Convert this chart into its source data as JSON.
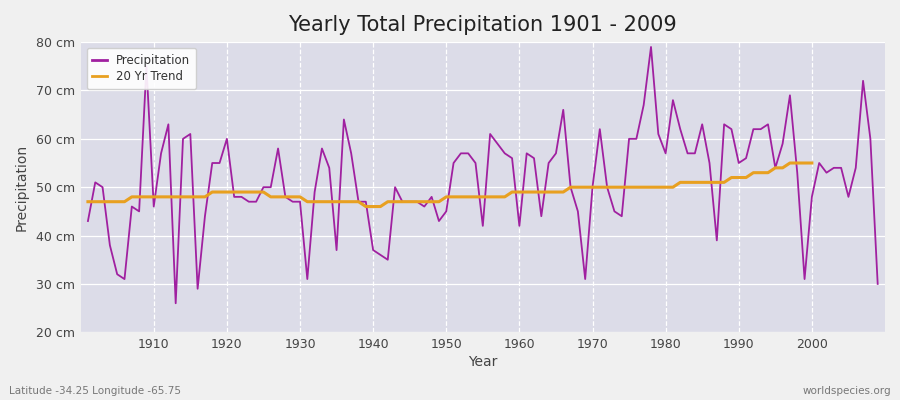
{
  "title": "Yearly Total Precipitation 1901 - 2009",
  "xlabel": "Year",
  "ylabel": "Precipitation",
  "subtitle": "Latitude -34.25 Longitude -65.75",
  "watermark": "worldspecies.org",
  "years": [
    1901,
    1902,
    1903,
    1904,
    1905,
    1906,
    1907,
    1908,
    1909,
    1910,
    1911,
    1912,
    1913,
    1914,
    1915,
    1916,
    1917,
    1918,
    1919,
    1920,
    1921,
    1922,
    1923,
    1924,
    1925,
    1926,
    1927,
    1928,
    1929,
    1930,
    1931,
    1932,
    1933,
    1934,
    1935,
    1936,
    1937,
    1938,
    1939,
    1940,
    1941,
    1942,
    1943,
    1944,
    1945,
    1946,
    1947,
    1948,
    1949,
    1950,
    1951,
    1952,
    1953,
    1954,
    1955,
    1956,
    1957,
    1958,
    1959,
    1960,
    1961,
    1962,
    1963,
    1964,
    1965,
    1966,
    1967,
    1968,
    1969,
    1970,
    1971,
    1972,
    1973,
    1974,
    1975,
    1976,
    1977,
    1978,
    1979,
    1980,
    1981,
    1982,
    1983,
    1984,
    1985,
    1986,
    1987,
    1988,
    1989,
    1990,
    1991,
    1992,
    1993,
    1994,
    1995,
    1996,
    1997,
    1998,
    1999,
    2000,
    2001,
    2002,
    2003,
    2004,
    2005,
    2006,
    2007,
    2008,
    2009
  ],
  "precip": [
    43,
    51,
    50,
    38,
    32,
    31,
    46,
    45,
    75,
    46,
    57,
    63,
    26,
    60,
    61,
    29,
    44,
    55,
    55,
    60,
    48,
    48,
    47,
    47,
    50,
    50,
    58,
    48,
    47,
    47,
    31,
    49,
    58,
    54,
    37,
    64,
    57,
    47,
    47,
    37,
    36,
    35,
    50,
    47,
    47,
    47,
    46,
    48,
    43,
    45,
    55,
    57,
    57,
    55,
    42,
    61,
    59,
    57,
    56,
    42,
    57,
    56,
    44,
    55,
    57,
    66,
    50,
    45,
    31,
    50,
    62,
    50,
    45,
    44,
    60,
    60,
    67,
    79,
    61,
    57,
    68,
    62,
    57,
    57,
    63,
    55,
    39,
    63,
    62,
    55,
    56,
    62,
    62,
    63,
    54,
    59,
    69,
    53,
    31,
    48,
    55,
    53,
    54,
    54,
    48,
    54,
    72,
    60,
    30
  ],
  "trend": [
    47,
    47,
    47,
    47,
    47,
    47,
    48,
    48,
    48,
    48,
    48,
    48,
    48,
    48,
    48,
    48,
    48,
    49,
    49,
    49,
    49,
    49,
    49,
    49,
    49,
    48,
    48,
    48,
    48,
    48,
    47,
    47,
    47,
    47,
    47,
    47,
    47,
    47,
    46,
    46,
    46,
    47,
    47,
    47,
    47,
    47,
    47,
    47,
    47,
    48,
    48,
    48,
    48,
    48,
    48,
    48,
    48,
    48,
    49,
    49,
    49,
    49,
    49,
    49,
    49,
    49,
    50,
    50,
    50,
    50,
    50,
    50,
    50,
    50,
    50,
    50,
    50,
    50,
    50,
    50,
    50,
    51,
    51,
    51,
    51,
    51,
    51,
    51,
    52,
    52,
    52,
    53,
    53,
    53,
    54,
    54,
    55,
    55,
    55,
    55,
    null,
    null,
    null,
    null,
    null,
    null,
    null,
    null,
    null
  ],
  "precip_color": "#a020a0",
  "trend_color": "#e8a020",
  "fig_bg": "#f0f0f0",
  "plot_bg": "#dcdce8",
  "ylim": [
    20,
    80
  ],
  "yticks": [
    20,
    30,
    40,
    50,
    60,
    70,
    80
  ],
  "ytick_labels": [
    "20 cm",
    "30 cm",
    "40 cm",
    "50 cm",
    "60 cm",
    "70 cm",
    "80 cm"
  ],
  "xticks": [
    1910,
    1920,
    1930,
    1940,
    1950,
    1960,
    1970,
    1980,
    1990,
    2000
  ],
  "xlim": [
    1900,
    2010
  ],
  "title_fontsize": 15,
  "label_fontsize": 10,
  "tick_fontsize": 9
}
